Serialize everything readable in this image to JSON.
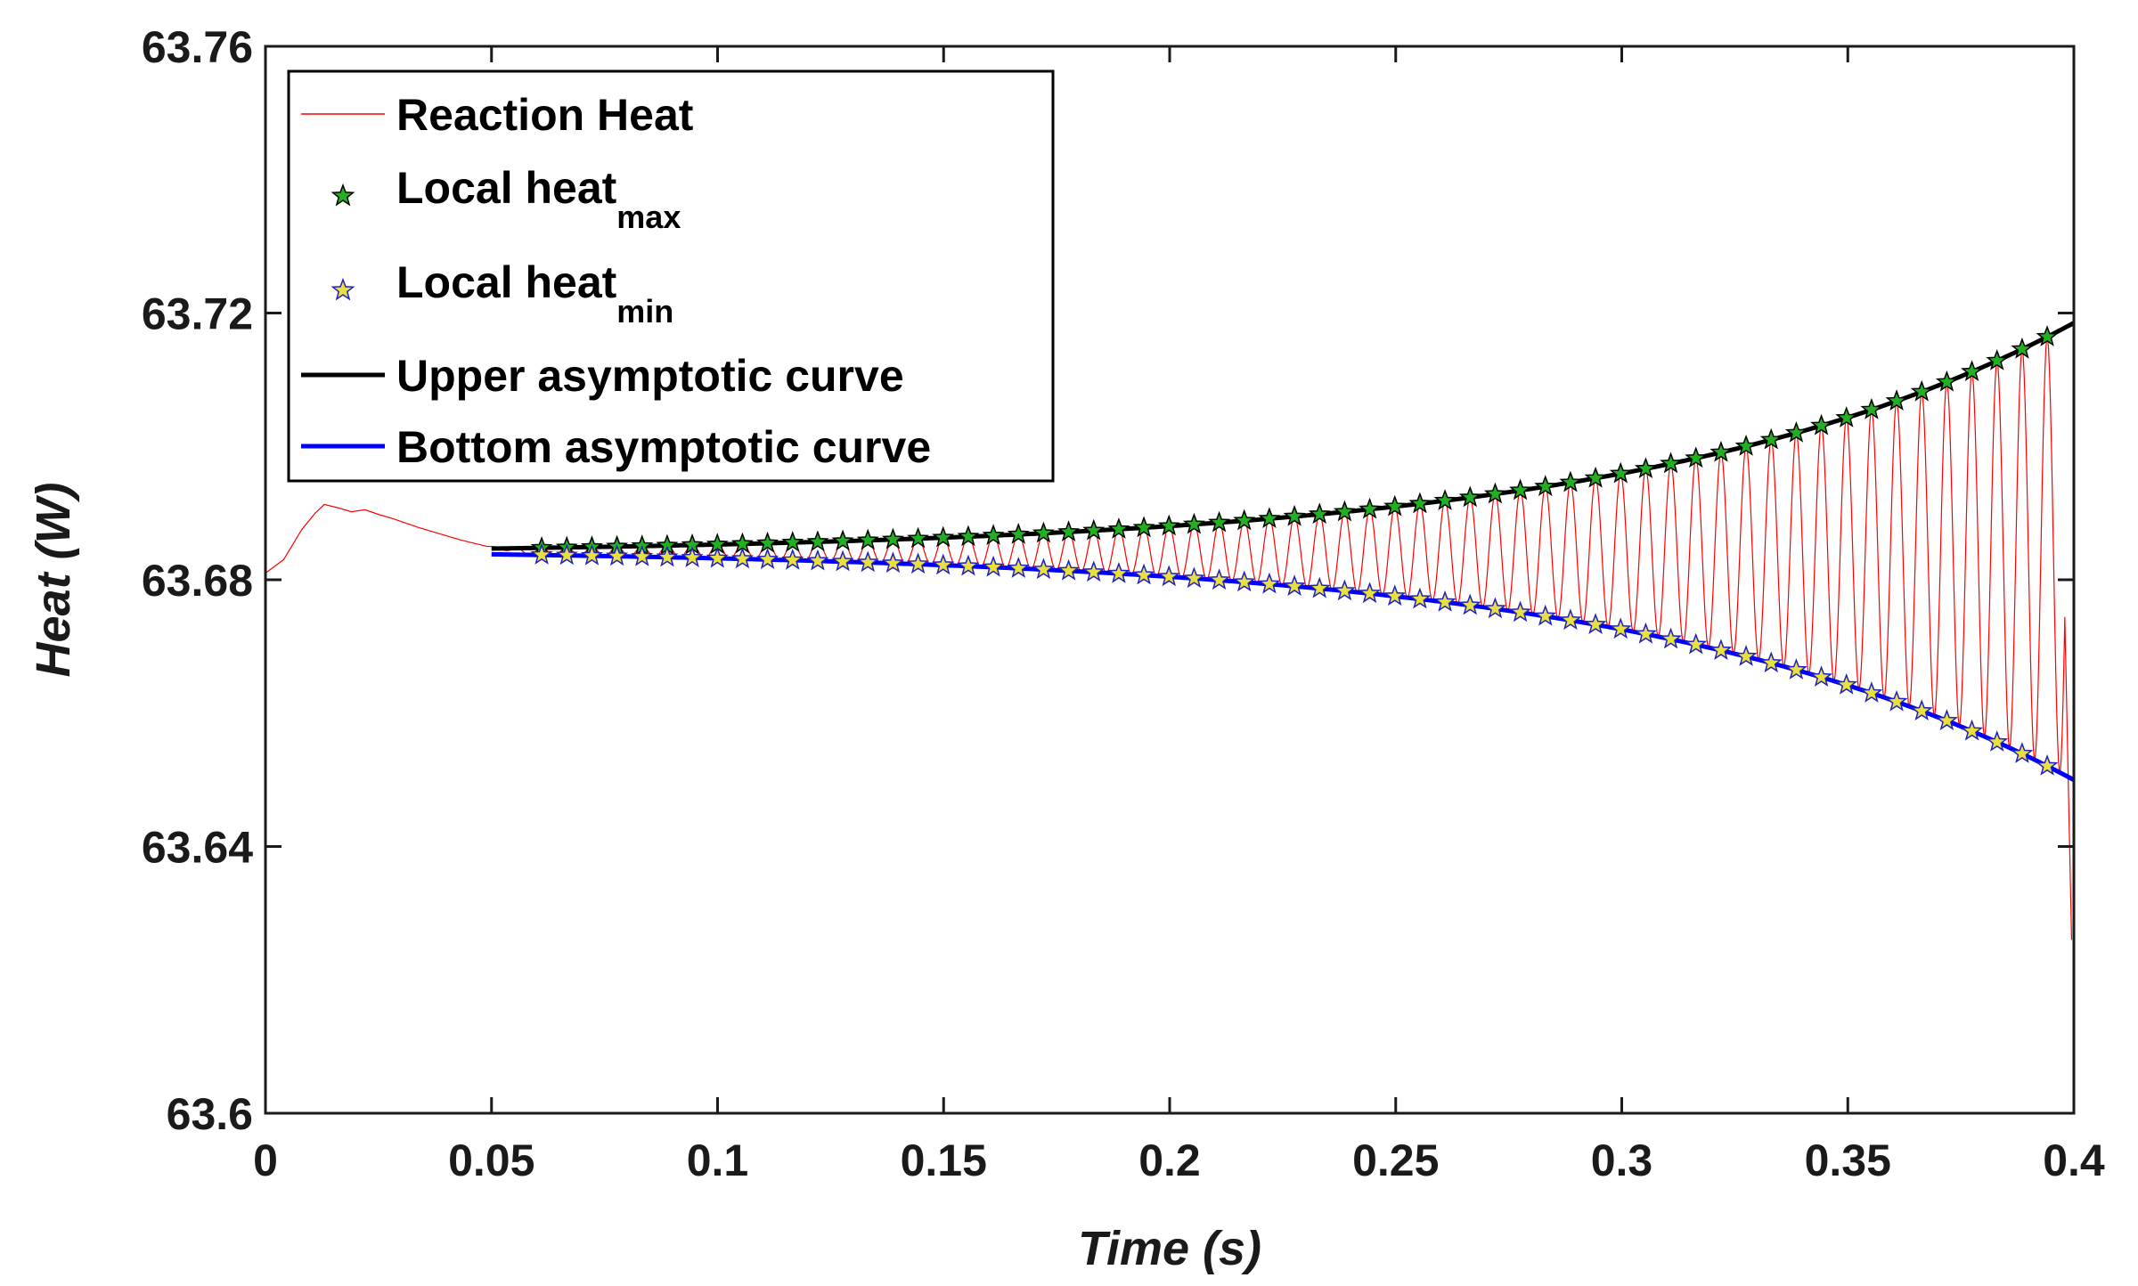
{
  "chart_data": {
    "type": "line",
    "title": "",
    "xlabel": "Time (s)",
    "ylabel": "Heat (W)",
    "xlim": [
      0,
      0.4
    ],
    "ylim": [
      63.6,
      63.76
    ],
    "xticks": [
      0,
      0.05,
      0.1,
      0.15,
      0.2,
      0.25,
      0.3,
      0.35,
      0.4
    ],
    "xtick_labels": [
      "0",
      "0.05",
      "0.1",
      "0.15",
      "0.2",
      "0.25",
      "0.3",
      "0.35",
      "0.4"
    ],
    "yticks": [
      63.6,
      63.64,
      63.68,
      63.72,
      63.76
    ],
    "ytick_labels": [
      "63.6",
      "63.64",
      "63.68",
      "63.72",
      "63.76"
    ],
    "grid": false,
    "legend_position": "top-left",
    "legend": [
      {
        "label": "Reaction Heat",
        "sub": "",
        "marker": "line",
        "color": "#ff0000"
      },
      {
        "label": "Local heat",
        "sub": "max",
        "marker": "star",
        "color": "#22b022"
      },
      {
        "label": "Local heat",
        "sub": "min",
        "marker": "star",
        "color": "#e8e040"
      },
      {
        "label": "Upper asymptotic curve",
        "sub": "",
        "marker": "line",
        "color": "#000000"
      },
      {
        "label": "Bottom asymptotic curve",
        "sub": "",
        "marker": "line",
        "color": "#0000ff"
      }
    ],
    "series": [
      {
        "name": "Reaction Heat",
        "color": "#ff0000",
        "initial_transient": {
          "x": [
            0,
            0.004,
            0.008,
            0.011,
            0.013,
            0.016,
            0.019,
            0.022,
            0.025,
            0.028,
            0.031,
            0.034,
            0.037,
            0.04,
            0.043,
            0.046,
            0.049
          ],
          "y": [
            63.681,
            63.683,
            63.6875,
            63.69,
            63.6913,
            63.6908,
            63.6902,
            63.6905,
            63.6898,
            63.6892,
            63.6885,
            63.6878,
            63.6872,
            63.6866,
            63.686,
            63.6855,
            63.685
          ]
        },
        "oscillation_start": 0.05,
        "oscillation_end": 0.398,
        "oscillation_period": 0.00555,
        "final_value": 63.626
      },
      {
        "name": "Upper asymptotic curve",
        "color": "#000000",
        "x_range": [
          0.05,
          0.4
        ],
        "model": "y = 63.6838 + 0.00088 * exp(10.5 * (t - 0.05))"
      },
      {
        "name": "Bottom asymptotic curve",
        "color": "#0000ff",
        "x_range": [
          0.05,
          0.4
        ],
        "model": "y = 63.6847 - 0.00088 * exp(10.5 * (t - 0.05))"
      },
      {
        "name": "Local heat max",
        "color": "#22b022",
        "x_range": [
          0.0611,
          0.3942
        ],
        "spacing": 0.00555
      },
      {
        "name": "Local heat min",
        "color": "#e8e040",
        "x_range": [
          0.0611,
          0.3942
        ],
        "spacing": 0.00555
      }
    ]
  }
}
